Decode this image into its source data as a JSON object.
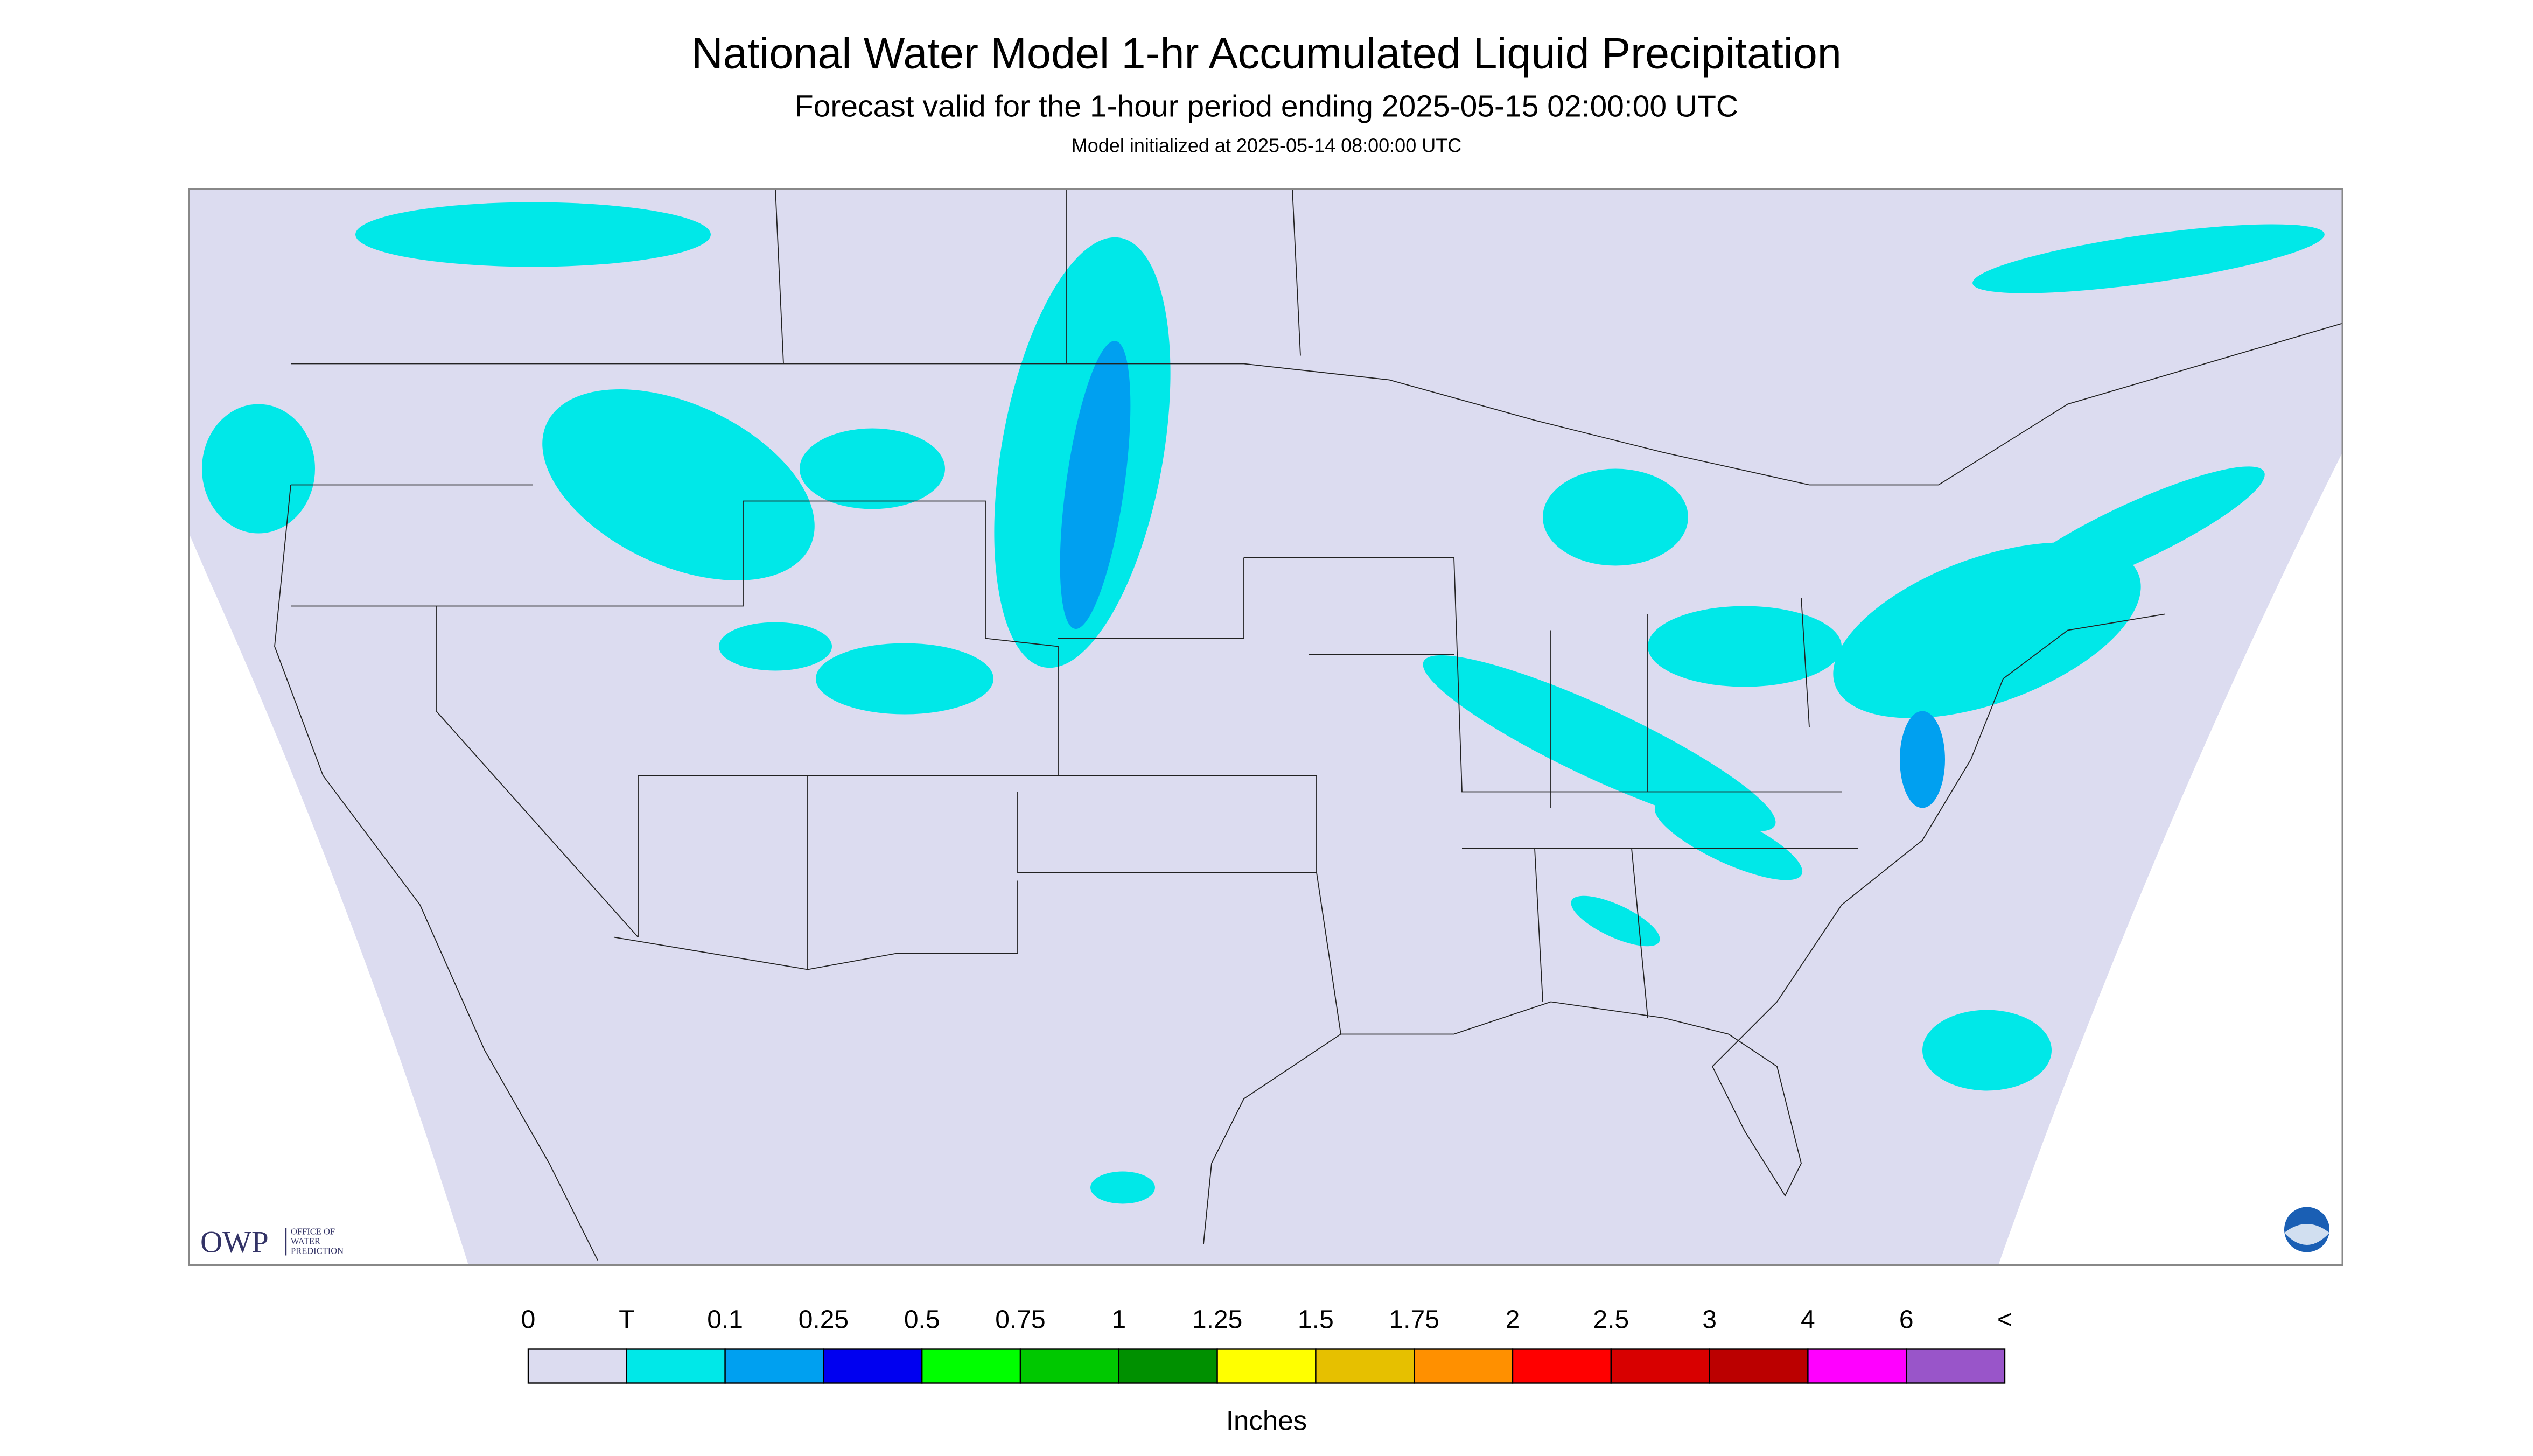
{
  "header": {
    "title": "National Water Model 1-hr Accumulated Liquid Precipitation",
    "subtitle": "Forecast valid for the 1-hour period ending 2025-05-15 02:00:00 UTC",
    "note": "Model initialized at 2025-05-14 08:00:00 UTC"
  },
  "legend": {
    "labels": [
      "0",
      "T",
      "0.1",
      "0.25",
      "0.5",
      "0.75",
      "1",
      "1.25",
      "1.5",
      "1.75",
      "2",
      "2.5",
      "3",
      "4",
      "6",
      "<"
    ],
    "colors": [
      "#dcdcf0",
      "#00e8e8",
      "#00a0f0",
      "#0000f0",
      "#00ff00",
      "#00c800",
      "#009000",
      "#ffff00",
      "#e6c000",
      "#ff9000",
      "#ff0000",
      "#d80000",
      "#bb0000",
      "#ff00ff",
      "#9955c9"
    ],
    "unit": "Inches"
  },
  "logo": {
    "abbr": "OWP",
    "lines": [
      "OFFICE OF",
      "WATER",
      "PREDICTION"
    ]
  }
}
